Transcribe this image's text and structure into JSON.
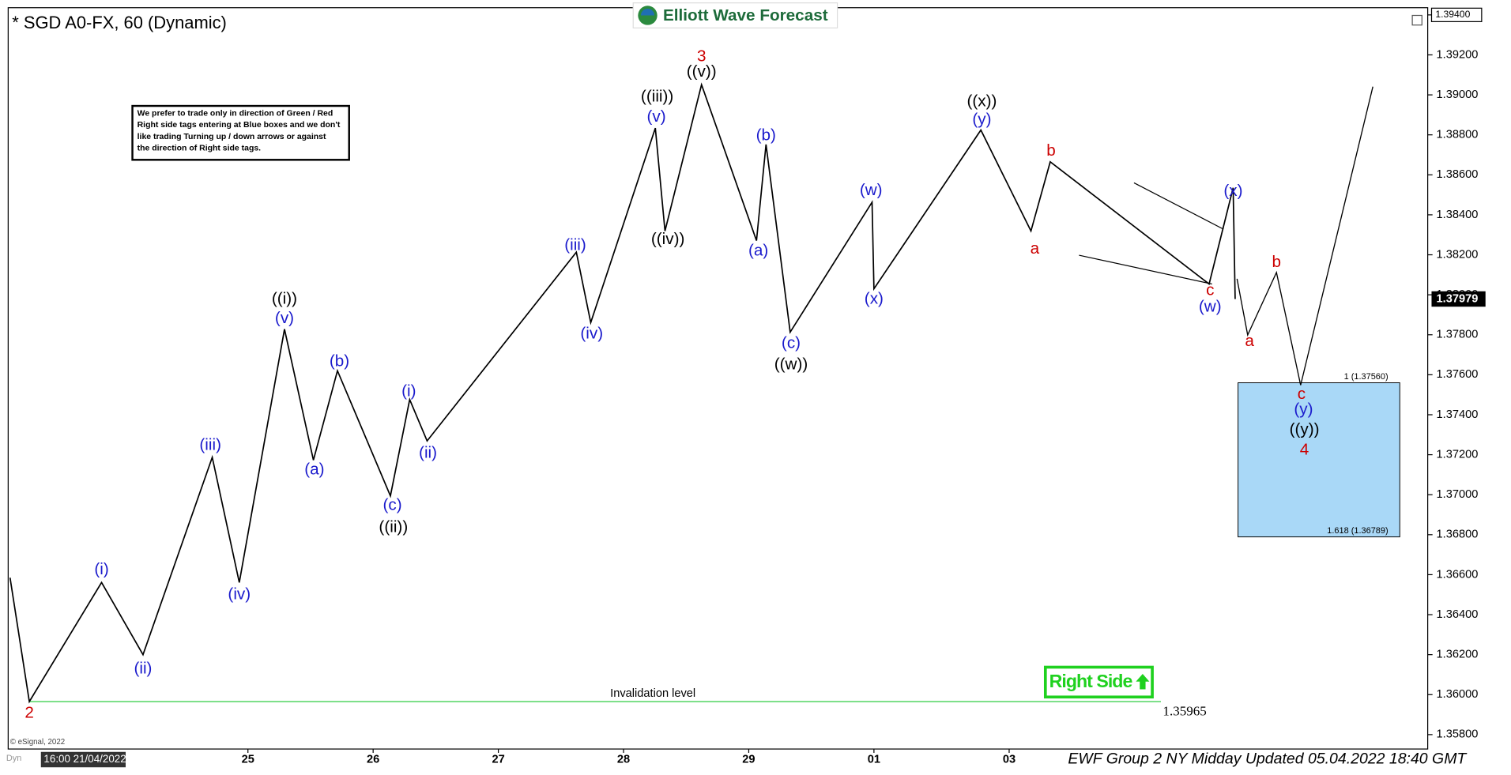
{
  "chart_data": {
    "type": "line",
    "title": "* SGD A0-FX, 60 (Dynamic)",
    "logo": "Elliott Wave Forecast",
    "footer": "EWF Group 2 NY Midday Updated 05.04.2022 18:40 GMT",
    "copyright": "© eSignal, 2022",
    "cursor_label": "16:00 21/04/2022",
    "corner_label": "Dyn",
    "note": [
      "We prefer to trade only in direction of Green / Red",
      "Right side tags entering at Blue boxes and we don't",
      "like trading Turning up / down arrows or against",
      "the direction of Right side tags."
    ],
    "right_side": "Right Side",
    "xlim": [
      -0.915,
      10.423
    ],
    "ylim": [
      1.35728,
      1.39436
    ],
    "xticks": [
      {
        "value": 1,
        "label": "25"
      },
      {
        "value": 2,
        "label": "26"
      },
      {
        "value": 3,
        "label": "27"
      },
      {
        "value": 4,
        "label": "28"
      },
      {
        "value": 5,
        "label": "29"
      },
      {
        "value": 6,
        "label": "01"
      },
      {
        "value": 7.08,
        "label": "03"
      }
    ],
    "yticks": [
      {
        "value": 1.358,
        "label": "1.35800"
      },
      {
        "value": 1.36,
        "label": "1.36000"
      },
      {
        "value": 1.362,
        "label": "1.36200"
      },
      {
        "value": 1.364,
        "label": "1.36400"
      },
      {
        "value": 1.366,
        "label": "1.36600"
      },
      {
        "value": 1.368,
        "label": "1.36800"
      },
      {
        "value": 1.37,
        "label": "1.37000"
      },
      {
        "value": 1.372,
        "label": "1.37200"
      },
      {
        "value": 1.374,
        "label": "1.37400"
      },
      {
        "value": 1.376,
        "label": "1.37600"
      },
      {
        "value": 1.378,
        "label": "1.37800"
      },
      {
        "value": 1.38,
        "label": "1.38000"
      },
      {
        "value": 1.382,
        "label": "1.38200"
      },
      {
        "value": 1.384,
        "label": "1.38400"
      },
      {
        "value": 1.386,
        "label": "1.38600"
      },
      {
        "value": 1.388,
        "label": "1.38800"
      },
      {
        "value": 1.39,
        "label": "1.39000"
      },
      {
        "value": 1.392,
        "label": "1.39200"
      },
      {
        "value": 1.394,
        "label": "1.39400"
      }
    ],
    "last": {
      "value": 1.37979,
      "label": "1.37979"
    },
    "series": [
      {
        "color": "#000000",
        "x": [
          -0.9,
          -0.746,
          -0.169,
          0.162,
          0.715,
          0.931,
          1.292,
          1.523,
          1.715,
          2.138,
          2.292,
          2.431,
          3.623,
          3.738,
          4.254,
          4.331,
          4.623,
          5.062,
          5.138,
          5.331,
          5.985,
          6.0,
          6.854,
          7.254,
          7.408,
          8.677,
          8.869,
          8.885
        ],
        "values": [
          1.36585,
          1.35965,
          1.36561,
          1.362,
          1.37187,
          1.36561,
          1.37828,
          1.37173,
          1.3762,
          1.36994,
          1.37476,
          1.37269,
          1.38213,
          1.37861,
          1.38834,
          1.38319,
          1.39051,
          1.38271,
          1.38752,
          1.37813,
          1.38463,
          1.3803,
          1.38824,
          1.38319,
          1.38665,
          1.38054,
          1.38535,
          1.37979
        ]
      },
      {
        "color": "#000000",
        "x": [
          8.9,
          8.985,
          9.215,
          9.408,
          9.985
        ],
        "values": [
          1.3808,
          1.37799,
          1.38112,
          1.37548,
          1.39041
        ]
      }
    ],
    "trendlines": [
      {
        "x": [
          8.077,
          8.792
        ],
        "values": [
          1.3856,
          1.38328
        ]
      },
      {
        "x": [
          7.638,
          8.7
        ],
        "values": [
          1.38198,
          1.38054
        ]
      }
    ],
    "box": {
      "color": "#a9d8f7",
      "x0": 8.908,
      "x1": 10.2,
      "top": 1.3756,
      "bottom": 1.36789,
      "top_label": "1 (1.37560)",
      "bottom_label": "1.618 (1.36789)"
    },
    "invalidation": {
      "color": "#2ecc40",
      "value": 1.35965,
      "x0": -0.746,
      "x1": 8.292,
      "label": "Invalidation level",
      "value_label": "1.35965"
    },
    "annotations": [
      {
        "text": "2",
        "color": "#cc0000",
        "x": -0.746,
        "y": 1.35906
      },
      {
        "text": "(i)",
        "color": "#1a1acc",
        "x": -0.169,
        "y": 1.36623
      },
      {
        "text": "(ii)",
        "color": "#1a1acc",
        "x": 0.162,
        "y": 1.36127
      },
      {
        "text": "(iii)",
        "color": "#1a1acc",
        "x": 0.7,
        "y": 1.37245
      },
      {
        "text": "(iv)",
        "color": "#1a1acc",
        "x": 0.931,
        "y": 1.36498
      },
      {
        "text": "((i))",
        "color": "#000000",
        "x": 1.292,
        "y": 1.37977
      },
      {
        "text": "(v)",
        "color": "#1a1acc",
        "x": 1.292,
        "y": 1.3788
      },
      {
        "text": "(a)",
        "color": "#1a1acc",
        "x": 1.531,
        "y": 1.37124
      },
      {
        "text": "(b)",
        "color": "#1a1acc",
        "x": 1.731,
        "y": 1.37664
      },
      {
        "text": "(c)",
        "color": "#1a1acc",
        "x": 2.154,
        "y": 1.36946
      },
      {
        "text": "((ii))",
        "color": "#000000",
        "x": 2.162,
        "y": 1.36835
      },
      {
        "text": "(i)",
        "color": "#1a1acc",
        "x": 2.285,
        "y": 1.37514
      },
      {
        "text": "(ii)",
        "color": "#1a1acc",
        "x": 2.438,
        "y": 1.37206
      },
      {
        "text": "(iii)",
        "color": "#1a1acc",
        "x": 3.615,
        "y": 1.38246
      },
      {
        "text": "(iv)",
        "color": "#1a1acc",
        "x": 3.746,
        "y": 1.37803
      },
      {
        "text": "((iii))",
        "color": "#000000",
        "x": 4.269,
        "y": 1.38988
      },
      {
        "text": "(v)",
        "color": "#1a1acc",
        "x": 4.262,
        "y": 1.38887
      },
      {
        "text": "((iv))",
        "color": "#000000",
        "x": 4.354,
        "y": 1.38275
      },
      {
        "text": "3",
        "color": "#cc0000",
        "x": 4.623,
        "y": 1.3919
      },
      {
        "text": "((v))",
        "color": "#000000",
        "x": 4.623,
        "y": 1.39113
      },
      {
        "text": "(a)",
        "color": "#1a1acc",
        "x": 5.077,
        "y": 1.38218
      },
      {
        "text": "(b)",
        "color": "#1a1acc",
        "x": 5.138,
        "y": 1.38795
      },
      {
        "text": "(c)",
        "color": "#1a1acc",
        "x": 5.338,
        "y": 1.37755
      },
      {
        "text": "((w))",
        "color": "#000000",
        "x": 5.338,
        "y": 1.37649
      },
      {
        "text": "(w)",
        "color": "#1a1acc",
        "x": 5.977,
        "y": 1.38521
      },
      {
        "text": "(x)",
        "color": "#1a1acc",
        "x": 6.0,
        "y": 1.37977
      },
      {
        "text": "((x))",
        "color": "#000000",
        "x": 6.862,
        "y": 1.38964
      },
      {
        "text": "(y)",
        "color": "#1a1acc",
        "x": 6.862,
        "y": 1.38873
      },
      {
        "text": "a",
        "color": "#cc0000",
        "x": 7.285,
        "y": 1.38227
      },
      {
        "text": "b",
        "color": "#cc0000",
        "x": 7.415,
        "y": 1.38718
      },
      {
        "text": "c",
        "color": "#cc0000",
        "x": 8.685,
        "y": 1.3802
      },
      {
        "text": "(w)",
        "color": "#1a1acc",
        "x": 8.685,
        "y": 1.37938
      },
      {
        "text": "(x)",
        "color": "#1a1acc",
        "x": 8.869,
        "y": 1.38516
      },
      {
        "text": "a",
        "color": "#cc0000",
        "x": 9.0,
        "y": 1.37765
      },
      {
        "text": "b",
        "color": "#cc0000",
        "x": 9.215,
        "y": 1.3816
      },
      {
        "text": "c",
        "color": "#cc0000",
        "x": 9.415,
        "y": 1.375
      },
      {
        "text": "(y)",
        "color": "#1a1acc",
        "x": 9.431,
        "y": 1.37423
      },
      {
        "text": "((y))",
        "color": "#000000",
        "x": 9.438,
        "y": 1.37322
      },
      {
        "text": "4",
        "color": "#cc0000",
        "x": 9.438,
        "y": 1.37221
      }
    ]
  }
}
